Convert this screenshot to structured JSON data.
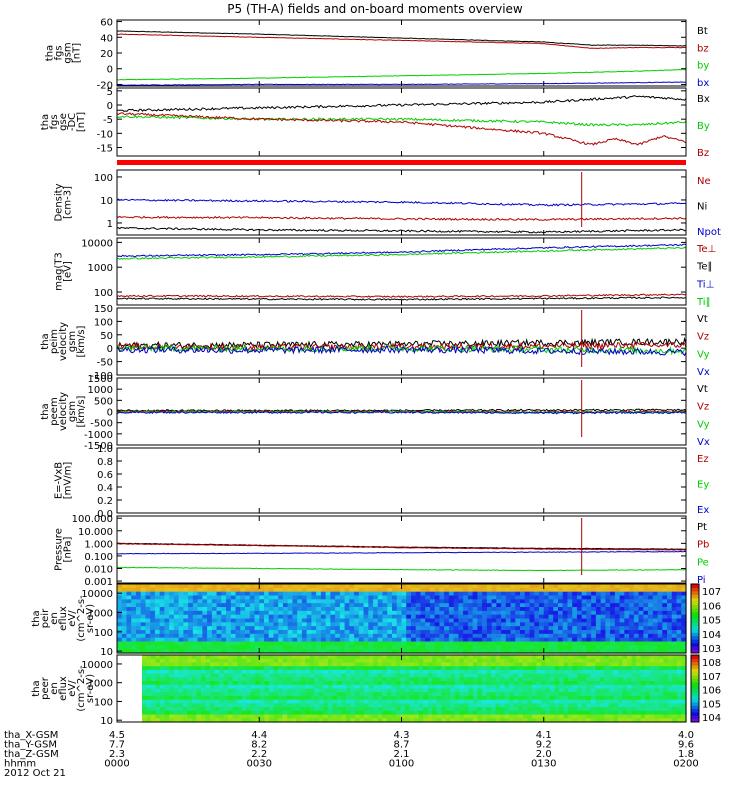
{
  "title": "P5 (TH-A) fields and on-board moments overview",
  "chart_data": [
    {
      "type": "line",
      "id": "fgs-gsm",
      "ylabel": [
        "tha",
        "fgs",
        "gsm",
        "[nT]"
      ],
      "yticks": [
        "60",
        "40",
        "20",
        "0",
        "-20"
      ],
      "ylim": [
        -22,
        62
      ],
      "series": [
        {
          "name": "Bt",
          "color": "#000000",
          "x": [
            0,
            30,
            60,
            90,
            100,
            110,
            120
          ],
          "y": [
            48,
            44,
            39,
            34,
            30,
            30,
            29
          ]
        },
        {
          "name": "bz",
          "color": "#b00000",
          "x": [
            0,
            30,
            60,
            90,
            100,
            110,
            120
          ],
          "y": [
            44,
            40,
            36,
            32,
            26,
            27,
            27
          ]
        },
        {
          "name": "by",
          "color": "#00cc00",
          "x": [
            0,
            30,
            60,
            90,
            110,
            120
          ],
          "y": [
            -14,
            -12,
            -9,
            -6,
            -3,
            -1
          ]
        },
        {
          "name": "bx",
          "color": "#0000cc",
          "x": [
            0,
            30,
            60,
            90,
            120
          ],
          "y": [
            -21,
            -20,
            -20,
            -19,
            -17
          ]
        }
      ]
    },
    {
      "type": "line",
      "id": "fgs-gse-dc",
      "ylabel": [
        "tha",
        "fgs",
        "gse",
        "-DC",
        "[nT]"
      ],
      "yticks": [
        "5",
        "0",
        "-5",
        "-10",
        "-15"
      ],
      "ylim": [
        -18,
        6
      ],
      "series": [
        {
          "name": "Bx",
          "color": "#000000",
          "x": [
            0,
            30,
            60,
            90,
            100,
            110,
            120
          ],
          "y": [
            -2,
            -1,
            0,
            1,
            2,
            3,
            2
          ]
        },
        {
          "name": "By",
          "color": "#00cc00",
          "x": [
            0,
            30,
            60,
            90,
            100,
            110,
            120
          ],
          "y": [
            -4,
            -5,
            -5,
            -6,
            -7,
            -7,
            -6
          ]
        },
        {
          "name": "Bz",
          "color": "#b00000",
          "x": [
            0,
            30,
            60,
            90,
            100,
            105,
            110,
            115,
            120
          ],
          "y": [
            -3,
            -5,
            -6,
            -10,
            -14,
            -12,
            -14,
            -11,
            -13
          ]
        }
      ]
    },
    {
      "type": "line",
      "id": "density",
      "ylabel": [
        "Density",
        "[cm-3]"
      ],
      "yticks": [
        "100",
        "10",
        "1"
      ],
      "scale": "log",
      "ylim": [
        0.3,
        200
      ],
      "series": [
        {
          "name": "Ne",
          "color": "#b00000",
          "x": [
            0,
            30,
            60,
            90,
            120
          ],
          "y": [
            1.8,
            1.7,
            1.5,
            1.4,
            1.6
          ]
        },
        {
          "name": "Ni",
          "color": "#000000",
          "x": [
            0,
            30,
            60,
            90,
            120
          ],
          "y": [
            0.6,
            0.5,
            0.45,
            0.4,
            0.5
          ]
        },
        {
          "name": "Npot",
          "color": "#0000cc",
          "x": [
            0,
            30,
            60,
            90,
            120
          ],
          "y": [
            10,
            9,
            8,
            6,
            7
          ]
        }
      ]
    },
    {
      "type": "line",
      "id": "temperature",
      "ylabel": [
        "mag(T3",
        "[eV]"
      ],
      "yticks": [
        "10000",
        "1000",
        "100"
      ],
      "scale": "log",
      "ylim": [
        30,
        15000
      ],
      "series": [
        {
          "name": "Te⊥",
          "color": "#b00000",
          "x": [
            0,
            30,
            60,
            90,
            120
          ],
          "y": [
            70,
            68,
            65,
            70,
            80
          ]
        },
        {
          "name": "Te∥",
          "color": "#000000",
          "x": [
            0,
            30,
            60,
            90,
            120
          ],
          "y": [
            55,
            52,
            50,
            55,
            60
          ]
        },
        {
          "name": "Ti⊥",
          "color": "#0000cc",
          "x": [
            0,
            30,
            60,
            90,
            120
          ],
          "y": [
            2800,
            3200,
            4000,
            6000,
            8000
          ]
        },
        {
          "name": "Ti∥",
          "color": "#00cc00",
          "x": [
            0,
            30,
            60,
            90,
            120
          ],
          "y": [
            2200,
            2600,
            3200,
            4500,
            6000
          ]
        }
      ]
    },
    {
      "type": "line",
      "id": "peim-velocity",
      "ylabel": [
        "tha",
        "peim",
        "velocity",
        "gsm",
        "[km/s]"
      ],
      "yticks": [
        "150",
        "100",
        "50",
        "0",
        "-50",
        "-100"
      ],
      "ylim": [
        -100,
        150
      ],
      "series": [
        {
          "name": "Vt",
          "color": "#000000",
          "x": [
            0,
            30,
            60,
            90,
            120
          ],
          "y": [
            10,
            12,
            15,
            20,
            25
          ]
        },
        {
          "name": "Vz",
          "color": "#b00000",
          "x": [
            0,
            30,
            60,
            90,
            120
          ],
          "y": [
            5,
            3,
            5,
            8,
            12
          ]
        },
        {
          "name": "Vy",
          "color": "#00cc00",
          "x": [
            0,
            30,
            60,
            90,
            120
          ],
          "y": [
            0,
            -2,
            0,
            -5,
            -10
          ]
        },
        {
          "name": "Vx",
          "color": "#0000cc",
          "x": [
            0,
            30,
            60,
            90,
            120
          ],
          "y": [
            -5,
            -8,
            -5,
            -10,
            -15
          ]
        }
      ]
    },
    {
      "type": "line",
      "id": "peem-velocity",
      "ylabel": [
        "tha",
        "peem",
        "velocity",
        "gsm",
        "[km/s]"
      ],
      "yticks": [
        "1500",
        "1000",
        "500",
        "0",
        "-500",
        "-1000",
        "-1500"
      ],
      "ylim": [
        -1500,
        1500
      ],
      "series": [
        {
          "name": "Vt",
          "color": "#000000",
          "x": [
            0,
            30,
            60,
            90,
            120
          ],
          "y": [
            40,
            40,
            45,
            60,
            70
          ]
        },
        {
          "name": "Vz",
          "color": "#b00000",
          "x": [
            0,
            30,
            60,
            90,
            120
          ],
          "y": [
            0,
            0,
            0,
            -20,
            -10
          ]
        },
        {
          "name": "Vy",
          "color": "#00cc00",
          "x": [
            0,
            30,
            60,
            90,
            120
          ],
          "y": [
            -20,
            -20,
            -20,
            -30,
            -40
          ]
        },
        {
          "name": "Vx",
          "color": "#0000cc",
          "x": [
            0,
            30,
            60,
            90,
            120
          ],
          "y": [
            -40,
            -40,
            -40,
            -60,
            -50
          ]
        }
      ]
    },
    {
      "type": "line",
      "id": "efield",
      "ylabel": [
        "E=-VxB",
        "[mV/m]"
      ],
      "yticks": [
        "1.0",
        "0.8",
        "0.6",
        "0.4",
        "0.2",
        "0.0"
      ],
      "ylim": [
        0,
        1
      ],
      "series": [
        {
          "name": "Ez",
          "color": "#b00000",
          "x": [],
          "y": []
        },
        {
          "name": "Ey",
          "color": "#00cc00",
          "x": [],
          "y": []
        },
        {
          "name": "Ex",
          "color": "#0000cc",
          "x": [],
          "y": []
        }
      ]
    },
    {
      "type": "line",
      "id": "pressure",
      "ylabel": [
        "Pressure",
        "[nPa]"
      ],
      "yticks": [
        "100.000",
        "10.000",
        "1.000",
        "0.100",
        "0.010",
        "0.001"
      ],
      "scale": "log",
      "ylim": [
        0.0007,
        150
      ],
      "series": [
        {
          "name": "Pt",
          "color": "#000000",
          "x": [
            0,
            30,
            60,
            90,
            120
          ],
          "y": [
            1.0,
            0.7,
            0.5,
            0.4,
            0.35
          ]
        },
        {
          "name": "Pb",
          "color": "#b00000",
          "x": [
            0,
            30,
            60,
            90,
            120
          ],
          "y": [
            0.9,
            0.65,
            0.45,
            0.35,
            0.3
          ]
        },
        {
          "name": "Pe",
          "color": "#00cc00",
          "x": [
            0,
            30,
            60,
            90,
            120
          ],
          "y": [
            0.012,
            0.01,
            0.008,
            0.007,
            0.008
          ]
        },
        {
          "name": "Pi",
          "color": "#0000cc",
          "x": [
            0,
            30,
            60,
            90,
            120
          ],
          "y": [
            0.15,
            0.16,
            0.18,
            0.2,
            0.22
          ]
        }
      ]
    },
    {
      "type": "heatmap",
      "id": "peir-spectrogram",
      "ylabel": [
        "tha",
        "peir",
        "en",
        "eflux",
        "eV/",
        "(cm^2-s-",
        "sr-eV)"
      ],
      "yticks": [
        "10000",
        "1000",
        "100",
        "10"
      ],
      "scale": "log",
      "colorbar_ticks": [
        "10^7",
        "10^6",
        "10^5",
        "10^4",
        "10^3"
      ]
    },
    {
      "type": "heatmap",
      "id": "peer-spectrogram",
      "ylabel": [
        "tha",
        "peer",
        "en",
        "eflux",
        "eV/",
        "(cm^2-s-",
        "sr-eV)"
      ],
      "yticks": [
        "10000",
        "1000",
        "100",
        "10"
      ],
      "scale": "log",
      "colorbar_ticks": [
        "10^8",
        "10^7",
        "10^6",
        "10^5",
        "10^4"
      ]
    }
  ],
  "xaxis": {
    "range_minutes": [
      0,
      120
    ],
    "rows": [
      {
        "label": "tha_X-GSM",
        "values": [
          "4.5",
          "4.4",
          "4.3",
          "4.1",
          "4.0"
        ]
      },
      {
        "label": "tha_Y-GSM",
        "values": [
          "7.7",
          "8.2",
          "8.7",
          "9.2",
          "9.6"
        ]
      },
      {
        "label": "tha_Z-GSM",
        "values": [
          "2.3",
          "2.2",
          "2.1",
          "2.0",
          "1.8"
        ]
      },
      {
        "label": "hhmm",
        "values": [
          "0000",
          "0030",
          "0100",
          "0130",
          "0200"
        ]
      }
    ],
    "date": "2012 Oct 21"
  },
  "colors": {
    "fg": "#000000",
    "red_band": "#ff0000"
  }
}
